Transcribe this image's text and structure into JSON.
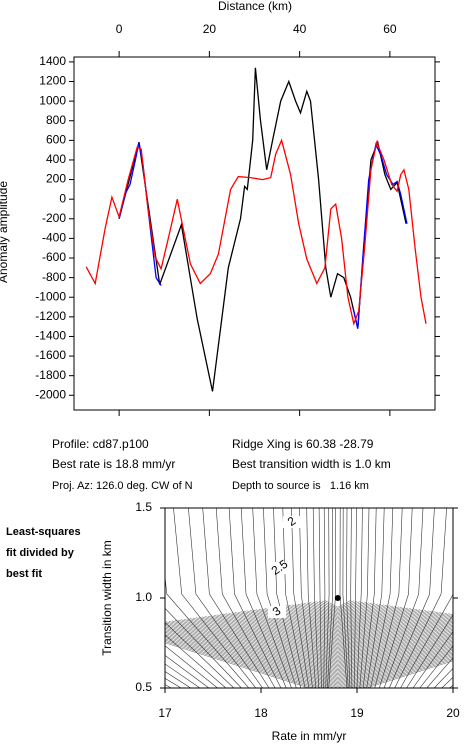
{
  "chart_data": [
    {
      "type": "line",
      "xlabel": "Distance (km)",
      "ylabel": "Anomaly amplitude",
      "xlim": [
        -10,
        70
      ],
      "xticks": [
        0,
        20,
        40,
        60
      ],
      "ylim": [
        -2150,
        1450
      ],
      "yticks": [
        -2000,
        -1800,
        -1600,
        -1400,
        -1200,
        -1000,
        -800,
        -600,
        -400,
        -200,
        0,
        200,
        400,
        600,
        800,
        1000,
        1200,
        1400
      ],
      "series": [
        {
          "color": "#000000",
          "x": [
            0,
            4.4,
            9,
            13.8,
            17.3,
            20.7,
            24.2,
            26.9,
            27.8,
            28.4,
            29.6,
            30.2,
            31.3,
            32.7,
            34,
            35.8,
            37.6,
            39.1,
            40.2,
            41.6,
            42.4,
            44.2,
            45.8,
            46.9,
            48.4,
            49.8,
            51.3,
            52.9,
            54.2,
            55.8,
            57.3,
            58.9,
            60.2,
            61.6,
            62.4,
            63.6
          ],
          "values": [
            -200,
            580,
            -870,
            -260,
            -1220,
            -1960,
            -700,
            -200,
            130,
            100,
            600,
            1340,
            810,
            300,
            600,
            1000,
            1200,
            1000,
            880,
            1100,
            1000,
            200,
            -700,
            -1000,
            -760,
            -800,
            -1000,
            -1320,
            -500,
            400,
            580,
            250,
            100,
            170,
            0,
            -250
          ]
        },
        {
          "color": "#0000ff",
          "x": [
            0,
            1.3,
            2.4,
            3.6,
            4.4,
            5.3,
            6.9,
            8.2,
            9.3,
            null,
            51.8,
            52.9,
            54,
            55.3,
            56.9,
            58,
            59.3,
            60.7,
            61.6,
            62.4,
            63.8
          ],
          "values": [
            -200,
            50,
            150,
            400,
            580,
            350,
            -300,
            -800,
            -880,
            null,
            -1100,
            -1320,
            -600,
            200,
            560,
            450,
            250,
            150,
            180,
            50,
            -250
          ]
        },
        {
          "color": "#ff0000",
          "x": [
            -7.3,
            -5.3,
            -3.1,
            -1.6,
            0,
            2,
            4,
            4.9,
            6.4,
            8,
            9.3,
            10.9,
            12.9,
            14.2,
            15.8,
            18,
            20.2,
            22,
            24.7,
            26.4,
            29.1,
            31.8,
            33.6,
            34.7,
            36,
            38,
            39.8,
            41.6,
            43.8,
            45.6,
            46.9,
            48,
            49.3,
            50.7,
            52,
            53.1,
            54.4,
            55.8,
            57.1,
            58.7,
            60.4,
            61.6,
            62.4,
            63.1,
            64.2,
            65.6,
            66.9,
            68
          ],
          "values": [
            -690,
            -860,
            -300,
            20,
            -180,
            200,
            530,
            510,
            -100,
            -590,
            -710,
            -400,
            0,
            -300,
            -660,
            -860,
            -760,
            -560,
            100,
            230,
            220,
            200,
            220,
            460,
            600,
            250,
            -250,
            -610,
            -860,
            -700,
            -100,
            -50,
            -400,
            -1000,
            -1270,
            -1140,
            -500,
            300,
            580,
            400,
            150,
            80,
            250,
            300,
            100,
            -500,
            -1000,
            -1270
          ]
        }
      ]
    },
    {
      "type": "contour",
      "xlabel": "Rate in mm/yr",
      "ylabel": "Transition width in km",
      "xlim": [
        17,
        20
      ],
      "xticks": [
        17,
        18,
        19,
        20
      ],
      "ylim": [
        0.5,
        1.5
      ],
      "yticks": [
        0.5,
        {
          "value": 1,
          "label": "1.0"
        },
        1.5
      ],
      "contour_levels": [
        2,
        2.5,
        3
      ],
      "best_fit": {
        "x": 18.8,
        "y": 1
      },
      "line_color": "#333333"
    }
  ],
  "profile_info": {
    "left": [
      "Profile: cd87.p100",
      "Best rate is 18.8 mm/yr",
      "Proj. Az: 126.0 deg. CW of N"
    ],
    "right": [
      "Ridge Xing is 60.38 -28.79",
      "Best transition width is 1.0 km",
      "Depth to source is   1.16 km"
    ]
  },
  "side_note": [
    "Least-squares",
    "fit divided by",
    "best fit"
  ]
}
